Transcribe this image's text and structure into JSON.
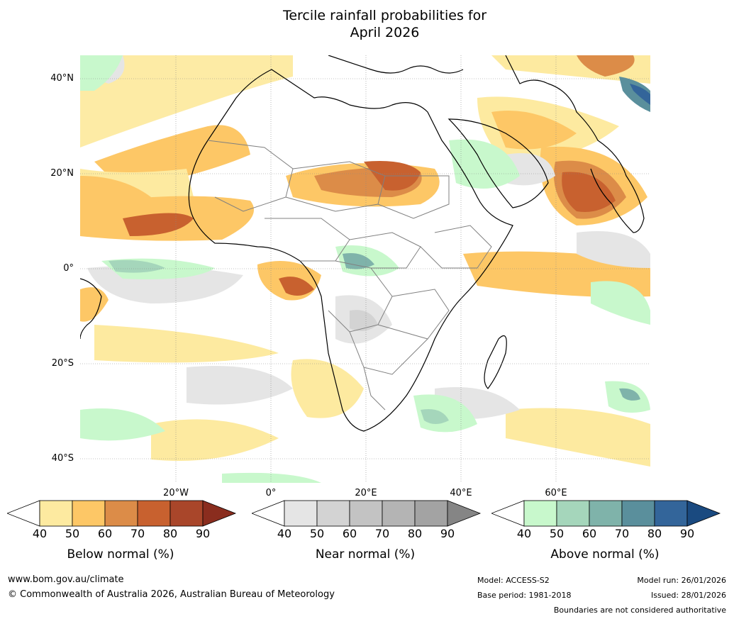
{
  "title": {
    "line1": "Tercile rainfall probabilities for",
    "line2": "April 2026"
  },
  "lat_labels": [
    "40°N",
    "20°N",
    "0°",
    "20°S",
    "40°S"
  ],
  "lon_labels": [
    "20°W",
    "0°",
    "20°E",
    "40°E",
    "60°E"
  ],
  "legend": {
    "below": {
      "title": "Below normal (%)",
      "ticks": [
        "40",
        "50",
        "60",
        "70",
        "80",
        "90"
      ],
      "colors": [
        "#ffffff",
        "#fdeaa0",
        "#fdc766",
        "#dc8c48",
        "#c8612f",
        "#a9462a",
        "#8a2d1e"
      ]
    },
    "near": {
      "title": "Near normal (%)",
      "ticks": [
        "40",
        "50",
        "60",
        "70",
        "80",
        "90"
      ],
      "colors": [
        "#ffffff",
        "#e5e5e5",
        "#d3d3d3",
        "#c3c3c3",
        "#b4b4b4",
        "#a3a3a3",
        "#858585"
      ]
    },
    "above": {
      "title": "Above normal (%)",
      "ticks": [
        "40",
        "50",
        "60",
        "70",
        "80",
        "90"
      ],
      "colors": [
        "#ffffff",
        "#c8f8cc",
        "#a5d6bb",
        "#7fb3aa",
        "#5a8f9c",
        "#33659a",
        "#1a4a80"
      ]
    }
  },
  "footer": {
    "url": "www.bom.gov.au/climate",
    "copyright": "© Commonwealth of Australia 2026, Australian Bureau of Meteorology",
    "model": "Model: ACCESS-S2",
    "base_period": "Base period: 1981-2018",
    "model_run": "Model run: 26/01/2026",
    "issued": "Issued: 28/01/2026",
    "disclaimer": "Boundaries are not considered authoritative"
  }
}
